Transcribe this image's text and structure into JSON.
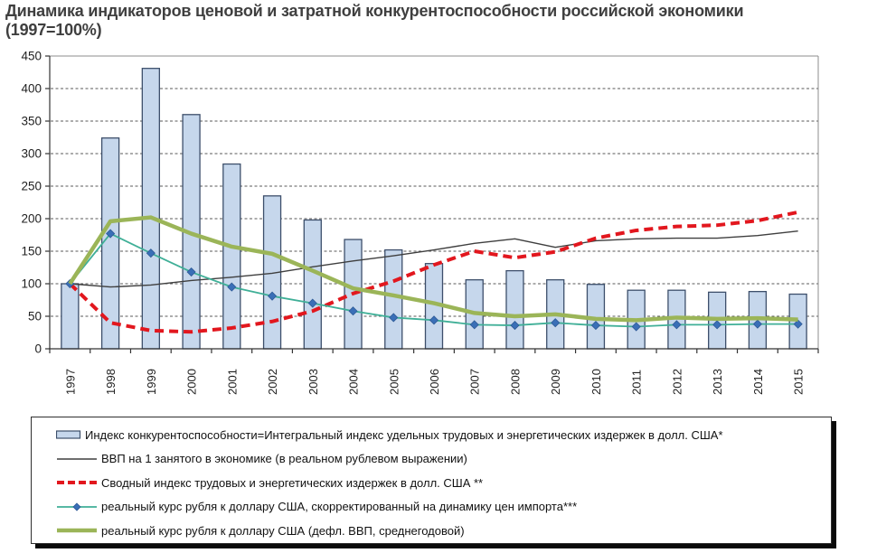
{
  "title": {
    "line1": "Динамика индикаторов ценовой и затратной конкурентоспособности российской экономики",
    "line2": "(1997=100%)"
  },
  "chart_data": {
    "type": "combo bar+line",
    "title": "Динамика индикаторов ценовой и затратной конкурентоспособности российской экономики (1997=100%)",
    "categories": [
      "1997",
      "1998",
      "1999",
      "2000",
      "2001",
      "2002",
      "2003",
      "2004",
      "2005",
      "2006",
      "2007",
      "2008",
      "2009",
      "2010",
      "2011",
      "2012",
      "2013",
      "2014",
      "2015"
    ],
    "ylim": [
      0,
      450
    ],
    "ytick_step": 50,
    "grid": "horizontal dashed",
    "legend_position": "bottom boxed",
    "axis_color": "#333333",
    "grid_color": "#5a5a5a",
    "series": [
      {
        "name": "Индекс конкурентоспособности=Интегральный индекс удельных трудовых и энергетических издержек в долл. США*",
        "type": "bar",
        "color": "#C6D7EC",
        "border_color": "#3D4F6B",
        "values": [
          100,
          324,
          431,
          360,
          284,
          235,
          198,
          168,
          152,
          131,
          106,
          120,
          106,
          99,
          90,
          90,
          87,
          88,
          84
        ]
      },
      {
        "name": "ВВП на 1 занятого в экономике (в реальном рублевом выражении)",
        "type": "line",
        "color": "#3f3f3f",
        "width": 1.4,
        "values": [
          100,
          95,
          98,
          105,
          110,
          116,
          126,
          135,
          143,
          152,
          162,
          169,
          156,
          166,
          169,
          170,
          170,
          174,
          181
        ]
      },
      {
        "name": "Сводный индекс трудовых и энергетических  издержек  в долл. США **",
        "type": "line",
        "color": "#E2171E",
        "width": 4,
        "dash": "10,6",
        "values": [
          100,
          40,
          28,
          26,
          32,
          42,
          58,
          85,
          104,
          129,
          150,
          140,
          149,
          170,
          182,
          188,
          190,
          197,
          210
        ]
      },
      {
        "name": "реальный курс рубля к доллару США, скорректированный на динамику цен импорта***",
        "type": "line",
        "color": "#3FAF97",
        "width": 1.8,
        "marker": "diamond",
        "marker_color": "#3A6FB7",
        "values": [
          100,
          177,
          147,
          118,
          95,
          81,
          70,
          58,
          48,
          44,
          37,
          36,
          40,
          36,
          34,
          37,
          37,
          38,
          38
        ]
      },
      {
        "name": "реальный курс рубля к доллару США (дефл. ВВП, среднегодовой)",
        "type": "line",
        "color": "#9BB558",
        "width": 4.5,
        "values": [
          100,
          196,
          202,
          177,
          157,
          146,
          120,
          93,
          82,
          70,
          55,
          50,
          53,
          46,
          44,
          48,
          46,
          47,
          45
        ]
      }
    ]
  }
}
